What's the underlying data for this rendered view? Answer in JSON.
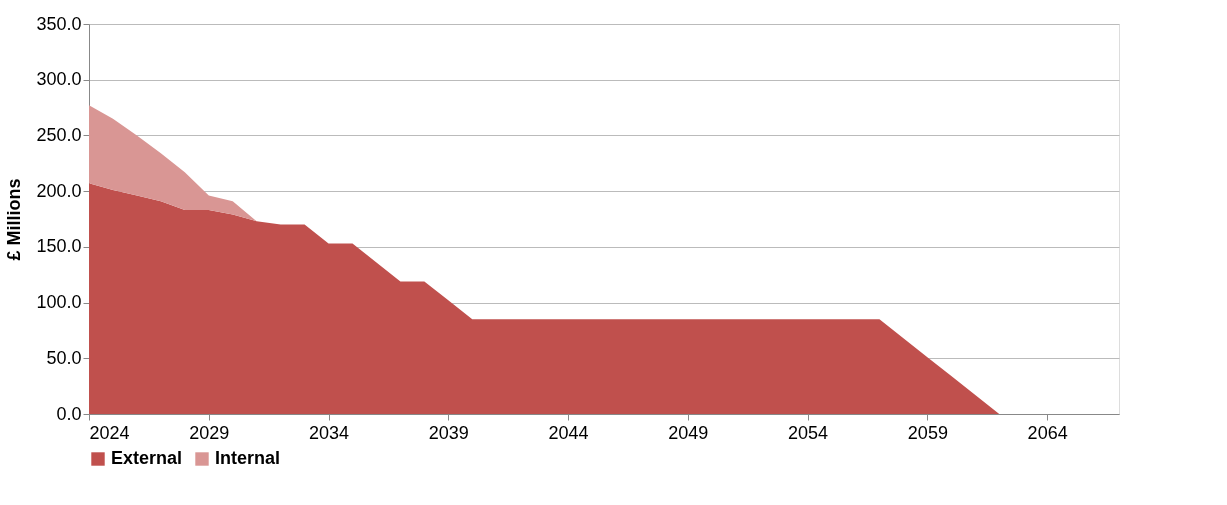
{
  "chart_data": {
    "type": "area",
    "ylabel": "£ Millions",
    "stacked": true,
    "x": [
      2024,
      2025,
      2026,
      2027,
      2028,
      2029,
      2030,
      2031,
      2032,
      2033,
      2034,
      2035,
      2036,
      2037,
      2038,
      2039,
      2040,
      2041,
      2042,
      2043,
      2044,
      2045,
      2046,
      2047,
      2048,
      2049,
      2050,
      2051,
      2052,
      2053,
      2054,
      2055,
      2056,
      2057,
      2058,
      2059,
      2060,
      2061,
      2062,
      2063,
      2064,
      2065,
      2066,
      2067
    ],
    "series": [
      {
        "name": "External",
        "color": "#c0504d",
        "values": [
          207,
          201,
          196,
          191,
          183,
          183,
          179,
          173,
          170,
          170,
          153,
          153,
          136,
          119,
          119,
          102,
          85,
          85,
          85,
          85,
          85,
          85,
          85,
          85,
          85,
          85,
          85,
          85,
          85,
          85,
          85,
          85,
          85,
          85,
          68,
          51,
          34,
          17,
          0,
          0,
          0,
          0,
          0,
          0
        ]
      },
      {
        "name": "Internal",
        "color": "#d99694",
        "values": [
          70,
          64,
          54,
          43,
          34,
          13,
          12,
          0,
          0,
          0,
          0,
          0,
          0,
          0,
          0,
          0,
          0,
          0,
          0,
          0,
          0,
          0,
          0,
          0,
          0,
          0,
          0,
          0,
          0,
          0,
          0,
          0,
          0,
          0,
          0,
          0,
          0,
          0,
          0,
          0,
          0,
          0,
          0,
          0
        ]
      }
    ],
    "xlim": [
      2024,
      2067
    ],
    "xticks": [
      2024,
      2029,
      2034,
      2039,
      2044,
      2049,
      2054,
      2059,
      2064
    ],
    "ylim": [
      0,
      350
    ],
    "yticks": [
      {
        "value": 0,
        "label": "0.0"
      },
      {
        "value": 50,
        "label": "50.0"
      },
      {
        "value": 100,
        "label": "100.0"
      },
      {
        "value": 150,
        "label": "150.0"
      },
      {
        "value": 200,
        "label": "200.0"
      },
      {
        "value": 250,
        "label": "250.0"
      },
      {
        "value": 300,
        "label": "300.0"
      },
      {
        "value": 350,
        "label": "350.0"
      }
    ],
    "grid": "y",
    "legend": "bottom"
  }
}
